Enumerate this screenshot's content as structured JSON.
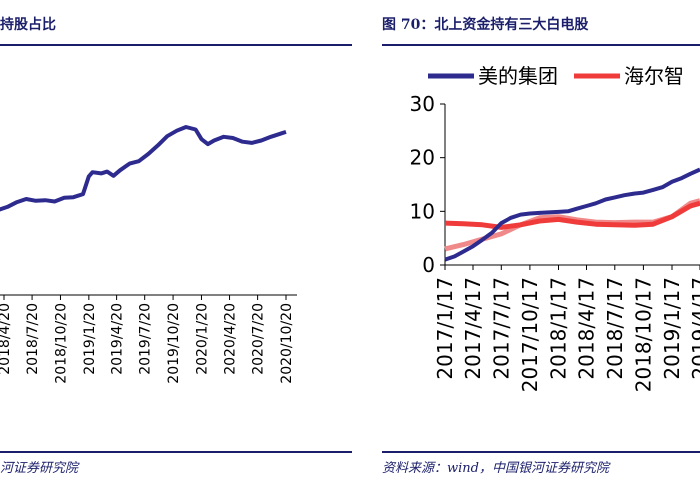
{
  "left_panel": {
    "caption": "持股占比",
    "source": "河证券研究院"
  },
  "right_panel": {
    "caption": "图 70：北上资金持有三大白电股",
    "source": "资料来源：wind，中国银河证券研究院"
  },
  "chart_data": [
    {
      "type": "line",
      "title": "持股占比",
      "x_tick_labels": [
        "2018/4/20",
        "2018/7/20",
        "2018/10/20",
        "2019/1/20",
        "2019/4/20",
        "2019/7/20",
        "2019/10/20",
        "2020/1/20",
        "2020/4/20",
        "2020/7/20",
        "2020/10/20"
      ],
      "series": [
        {
          "color": "#2e2b8f",
          "points": [
            [
              "2018/4/1",
              21.0
            ],
            [
              "2018/5/1",
              21.5
            ],
            [
              "2018/6/1",
              22.3
            ],
            [
              "2018/7/1",
              22.8
            ],
            [
              "2018/8/1",
              22.5
            ],
            [
              "2018/9/1",
              22.6
            ],
            [
              "2018/10/1",
              22.4
            ],
            [
              "2018/11/1",
              23.0
            ],
            [
              "2018/12/1",
              23.1
            ],
            [
              "2019/1/1",
              23.6
            ],
            [
              "2019/1/20",
              26.5
            ],
            [
              "2019/2/1",
              27.2
            ],
            [
              "2019/3/1",
              27.0
            ],
            [
              "2019/3/20",
              27.3
            ],
            [
              "2019/4/10",
              26.6
            ],
            [
              "2019/5/1",
              27.5
            ],
            [
              "2019/6/1",
              28.6
            ],
            [
              "2019/7/1",
              29.0
            ],
            [
              "2019/8/1",
              30.2
            ],
            [
              "2019/9/1",
              31.6
            ],
            [
              "2019/10/1",
              33.1
            ],
            [
              "2019/11/1",
              34.0
            ],
            [
              "2019/12/1",
              34.6
            ],
            [
              "2020/1/1",
              34.2
            ],
            [
              "2020/1/20",
              32.6
            ],
            [
              "2020/2/10",
              31.8
            ],
            [
              "2020/3/1",
              32.4
            ],
            [
              "2020/4/1",
              33.0
            ],
            [
              "2020/5/1",
              32.8
            ],
            [
              "2020/6/1",
              32.2
            ],
            [
              "2020/7/1",
              32.0
            ],
            [
              "2020/8/1",
              32.4
            ],
            [
              "2020/9/1",
              33.0
            ],
            [
              "2020/10/1",
              33.5
            ],
            [
              "2020/10/20",
              33.8
            ]
          ]
        }
      ]
    },
    {
      "type": "line",
      "title": "北上资金持有三大白电股",
      "yticks": [
        0,
        10,
        20,
        30
      ],
      "ylim": [
        0,
        30
      ],
      "x_tick_labels": [
        "2017/1/17",
        "2017/4/17",
        "2017/7/17",
        "2017/10/17",
        "2018/1/17",
        "2018/4/17",
        "2018/7/17",
        "2018/10/17",
        "2019/1/17",
        "2019/4/17"
      ],
      "legend_position": "top",
      "series": [
        {
          "name": "美的集团",
          "color": "#2e2b8f",
          "points": [
            [
              "2017/1/17",
              1.0
            ],
            [
              "2017/2/17",
              1.6
            ],
            [
              "2017/3/17",
              2.5
            ],
            [
              "2017/4/17",
              3.5
            ],
            [
              "2017/5/17",
              4.7
            ],
            [
              "2017/6/17",
              6.0
            ],
            [
              "2017/7/17",
              7.8
            ],
            [
              "2017/8/17",
              8.8
            ],
            [
              "2017/9/17",
              9.4
            ],
            [
              "2017/10/17",
              9.6
            ],
            [
              "2017/11/17",
              9.7
            ],
            [
              "2017/12/17",
              9.8
            ],
            [
              "2018/1/17",
              9.9
            ],
            [
              "2018/2/17",
              10.0
            ],
            [
              "2018/3/17",
              10.5
            ],
            [
              "2018/4/17",
              11.0
            ],
            [
              "2018/5/17",
              11.5
            ],
            [
              "2018/6/17",
              12.2
            ],
            [
              "2018/7/17",
              12.6
            ],
            [
              "2018/8/17",
              13.0
            ],
            [
              "2018/9/17",
              13.3
            ],
            [
              "2018/10/17",
              13.5
            ],
            [
              "2018/11/17",
              14.0
            ],
            [
              "2018/12/17",
              14.5
            ],
            [
              "2019/1/17",
              15.5
            ],
            [
              "2019/2/17",
              16.2
            ],
            [
              "2019/3/17",
              17.0
            ],
            [
              "2019/4/17",
              17.8
            ]
          ]
        },
        {
          "name": "海尔智",
          "color": "#f03b3b",
          "points": [
            [
              "2017/1/17",
              7.8
            ],
            [
              "2017/3/17",
              7.7
            ],
            [
              "2017/5/17",
              7.5
            ],
            [
              "2017/7/17",
              7.0
            ],
            [
              "2017/9/17",
              7.5
            ],
            [
              "2017/11/17",
              8.2
            ],
            [
              "2018/1/17",
              8.5
            ],
            [
              "2018/3/17",
              8.0
            ],
            [
              "2018/5/17",
              7.6
            ],
            [
              "2018/7/17",
              7.5
            ],
            [
              "2018/9/17",
              7.4
            ],
            [
              "2018/11/17",
              7.6
            ],
            [
              "2019/1/17",
              9.0
            ],
            [
              "2019/3/17",
              11.0
            ],
            [
              "2019/4/17",
              11.5
            ]
          ]
        },
        {
          "color": "#f08a8a",
          "points": [
            [
              "2017/1/17",
              3.0
            ],
            [
              "2017/3/17",
              3.8
            ],
            [
              "2017/5/17",
              4.8
            ],
            [
              "2017/7/17",
              5.8
            ],
            [
              "2017/9/17",
              7.5
            ],
            [
              "2017/11/17",
              8.8
            ],
            [
              "2018/1/17",
              9.0
            ],
            [
              "2018/3/17",
              8.4
            ],
            [
              "2018/5/17",
              8.0
            ],
            [
              "2018/7/17",
              7.9
            ],
            [
              "2018/9/17",
              8.0
            ],
            [
              "2018/11/17",
              8.0
            ],
            [
              "2019/1/17",
              9.0
            ],
            [
              "2019/3/17",
              11.5
            ],
            [
              "2019/4/17",
              12.0
            ]
          ]
        }
      ]
    }
  ]
}
